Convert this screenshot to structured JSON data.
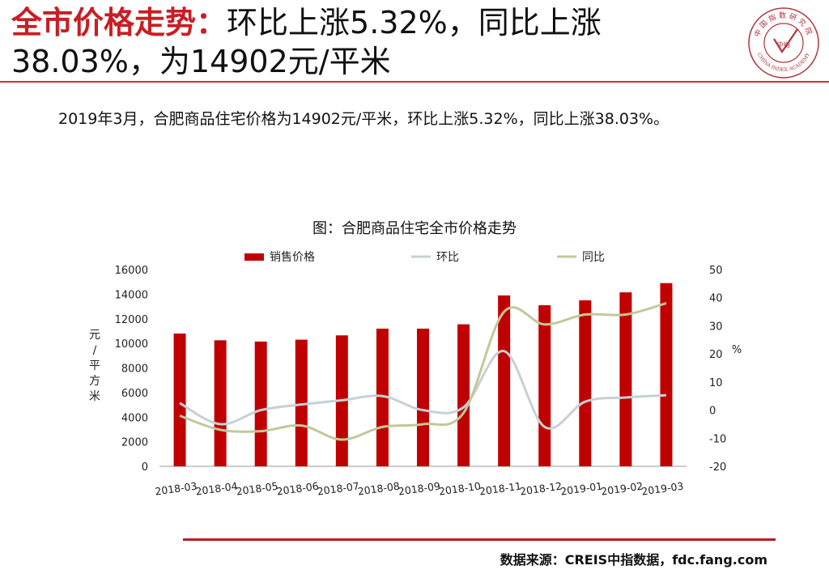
{
  "header": {
    "title_highlight": "全市价格走势：",
    "title_rest_line1": "环比上涨5.32%，同比上涨",
    "title_line2": "38.03%，为14902元/平米"
  },
  "logo": {
    "org_cn": "中国指数研究院",
    "org_en": "CHINA INDEX ACADEMY",
    "center": "中指"
  },
  "summary": "2019年3月，合肥商品住宅价格为14902元/平米，环比上涨5.32%，同比上涨38.03%。",
  "chart_title": "图：合肥商品住宅全市价格走势",
  "source": "数据来源：CREIS中指数据，fdc.fang.com",
  "colors": {
    "bar": "#c00000",
    "mom": "#c6d0d6",
    "yoy": "#c3c89a",
    "accent": "#c81e24"
  },
  "chart_data": {
    "type": "bar",
    "categories": [
      "2018-03",
      "2018-04",
      "2018-05",
      "2018-06",
      "2018-07",
      "2018-08",
      "2018-09",
      "2018-10",
      "2018-11",
      "2018-12",
      "2019-01",
      "2019-02",
      "2019-03"
    ],
    "series": [
      {
        "name": "销售价格",
        "type": "bar",
        "axis": "left",
        "values": [
          10800,
          10250,
          10150,
          10300,
          10650,
          11200,
          11200,
          11550,
          13900,
          13100,
          13500,
          14150,
          14902
        ]
      },
      {
        "name": "环比",
        "type": "line",
        "axis": "right",
        "values": [
          2.5,
          -5,
          0,
          2,
          3.5,
          5,
          0,
          1,
          21,
          -6,
          3,
          4.5,
          5.32
        ]
      },
      {
        "name": "同比",
        "type": "line",
        "axis": "right",
        "values": [
          -2,
          -7,
          -7.5,
          -5.5,
          -10.5,
          -6,
          -5,
          -1,
          35,
          30.5,
          34,
          34,
          38.03
        ]
      }
    ],
    "ylabel_left": "元/平方米",
    "ylabel_right": "%",
    "ylim_left": [
      0,
      16000
    ],
    "yticks_left": [
      0,
      2000,
      4000,
      6000,
      8000,
      10000,
      12000,
      14000,
      16000
    ],
    "ylim_right": [
      -20,
      50
    ],
    "yticks_right": [
      -20,
      -10,
      0,
      10,
      20,
      30,
      40,
      50
    ],
    "legend": [
      "销售价格",
      "环比",
      "同比"
    ],
    "legend_position": "top"
  }
}
